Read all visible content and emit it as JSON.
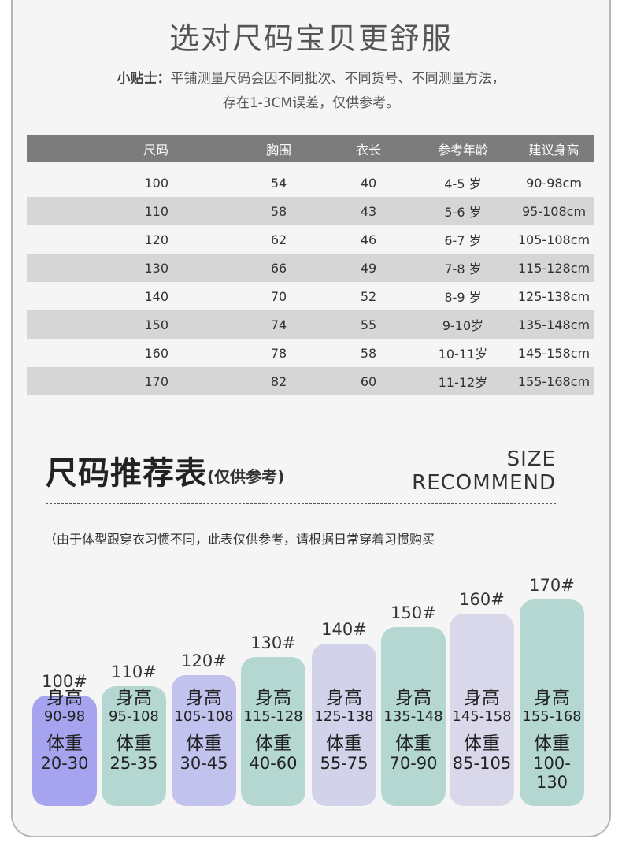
{
  "header": {
    "title": "选对尺码宝贝更舒服",
    "tip_label": "小贴士：",
    "tip_line1": "平铺测量尺码会因不同批次、不同货号、不同测量方法，",
    "tip_line2": "存在1-3CM误差，仅供参考。"
  },
  "size_table": {
    "headers": [
      "尺码",
      "胸围",
      "衣长",
      "参考年龄",
      "建议身高"
    ],
    "rows": [
      [
        "100",
        "54",
        "40",
        "4-5 岁",
        "90-98cm"
      ],
      [
        "110",
        "58",
        "43",
        "5-6 岁",
        "95-108cm"
      ],
      [
        "120",
        "62",
        "46",
        "6-7 岁",
        "105-108cm"
      ],
      [
        "130",
        "66",
        "49",
        "7-8 岁",
        "115-128cm"
      ],
      [
        "140",
        "70",
        "52",
        "8-9 岁",
        "125-138cm"
      ],
      [
        "150",
        "74",
        "55",
        "9-10岁",
        "135-148cm"
      ],
      [
        "160",
        "78",
        "58",
        "10-11岁",
        "145-158cm"
      ],
      [
        "170",
        "82",
        "60",
        "11-12岁",
        "155-168cm"
      ]
    ]
  },
  "recommend": {
    "title": "尺码推荐表",
    "subtitle": "(仅供参考)",
    "en_line1": "SIZE",
    "en_line2": "RECOMMEND",
    "note": "（由于体型跟穿衣习惯不同，此表仅供参考，请根据日常穿着习惯购买",
    "height_label": "身高",
    "weight_label": "体重",
    "bars": [
      {
        "size": "100#",
        "height": "90-98",
        "weight": "20-30",
        "color": "#a7a4ef"
      },
      {
        "size": "110#",
        "height": "95-108",
        "weight": "25-35",
        "color": "#b4d8d1"
      },
      {
        "size": "120#",
        "height": "105-108",
        "weight": "30-45",
        "color": "#c2c2ef"
      },
      {
        "size": "130#",
        "height": "115-128",
        "weight": "40-60",
        "color": "#b4d8d1"
      },
      {
        "size": "140#",
        "height": "125-138",
        "weight": "55-75",
        "color": "#d2d2eb"
      },
      {
        "size": "150#",
        "height": "135-148",
        "weight": "70-90",
        "color": "#b4d8d1"
      },
      {
        "size": "160#",
        "height": "145-158",
        "weight": "85-105",
        "color": "#d8d8ea"
      },
      {
        "size": "170#",
        "height": "155-168",
        "weight": "100-130",
        "color": "#b4d8d1"
      }
    ]
  }
}
